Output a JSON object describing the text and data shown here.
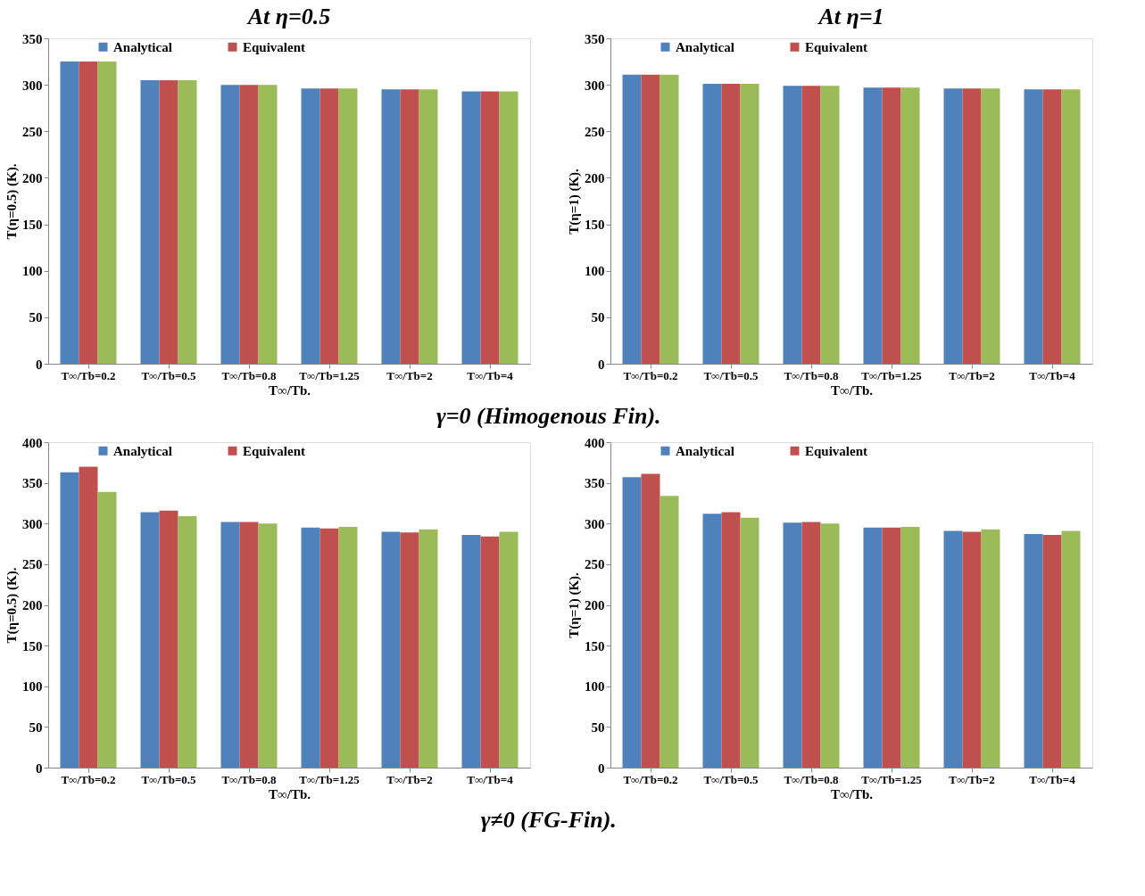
{
  "chart_data": [
    {
      "type": "bar",
      "title": "At η=0.5",
      "annotations": [
        "γ=0 (Himogenous Fin)."
      ],
      "xlabel": "T∞/Tb.",
      "ylabel": "T(η=0.5) (K).",
      "categories": [
        "T∞/Tb=0.2",
        "T∞/Tb=0.5",
        "T∞/Tb=0.8",
        "T∞/Tb=1.25",
        "T∞/Tb=2",
        "T∞/Tb=4"
      ],
      "ylim": [
        0,
        350
      ],
      "yticks": [
        0,
        50,
        100,
        150,
        200,
        250,
        300,
        350
      ],
      "grid": false,
      "legend": "top",
      "series": [
        {
          "name": "Analytical",
          "color": "#4f81bd",
          "values": [
            325,
            305,
            300,
            296,
            295,
            293
          ]
        },
        {
          "name": "Equivalent",
          "color": "#c0504d",
          "values": [
            325,
            305,
            300,
            296,
            295,
            293
          ]
        },
        {
          "color": "#9bbb59",
          "values": [
            325,
            305,
            300,
            296,
            295,
            293
          ]
        }
      ]
    },
    {
      "type": "bar",
      "title": "At η=1",
      "xlabel": "T∞/Tb.",
      "ylabel": "T(η=1) (K).",
      "categories": [
        "T∞/Tb=0.2",
        "T∞/Tb=0.5",
        "T∞/Tb=0.8",
        "T∞/Tb=1.25",
        "T∞/Tb=2",
        "T∞/Tb=4"
      ],
      "ylim": [
        0,
        350
      ],
      "yticks": [
        0,
        50,
        100,
        150,
        200,
        250,
        300,
        350
      ],
      "grid": false,
      "legend": "top",
      "series": [
        {
          "name": "Analytical",
          "color": "#4f81bd",
          "values": [
            311,
            301,
            299,
            297,
            296,
            295
          ]
        },
        {
          "name": "Equivalent",
          "color": "#c0504d",
          "values": [
            311,
            301,
            299,
            297,
            296,
            295
          ]
        },
        {
          "color": "#9bbb59",
          "values": [
            311,
            301,
            299,
            297,
            296,
            295
          ]
        }
      ]
    },
    {
      "type": "bar",
      "annotations": [
        "γ≠0 (FG-Fin)."
      ],
      "xlabel": "T∞/Tb.",
      "ylabel": "T(η=0.5) (K).",
      "categories": [
        "T∞/Tb=0.2",
        "T∞/Tb=0.5",
        "T∞/Tb=0.8",
        "T∞/Tb=1.25",
        "T∞/Tb=2",
        "T∞/Tb=4"
      ],
      "ylim": [
        0,
        400
      ],
      "yticks": [
        0,
        50,
        100,
        150,
        200,
        250,
        300,
        350,
        400
      ],
      "grid": false,
      "legend": "top",
      "series": [
        {
          "name": "Analytical",
          "color": "#4f81bd",
          "values": [
            363,
            314,
            302,
            295,
            290,
            286
          ]
        },
        {
          "name": "Equivalent",
          "color": "#c0504d",
          "values": [
            370,
            316,
            302,
            294,
            289,
            284
          ]
        },
        {
          "color": "#9bbb59",
          "values": [
            339,
            309,
            300,
            296,
            293,
            290
          ]
        }
      ]
    },
    {
      "type": "bar",
      "xlabel": "T∞/Tb.",
      "ylabel": "T(η=1) (K).",
      "categories": [
        "T∞/Tb=0.2",
        "T∞/Tb=0.5",
        "T∞/Tb=0.8",
        "T∞/Tb=1.25",
        "T∞/Tb=2",
        "T∞/Tb=4"
      ],
      "ylim": [
        0,
        400
      ],
      "yticks": [
        0,
        50,
        100,
        150,
        200,
        250,
        300,
        350,
        400
      ],
      "grid": false,
      "legend": "top",
      "series": [
        {
          "name": "Analytical",
          "color": "#4f81bd",
          "values": [
            357,
            312,
            301,
            295,
            291,
            287
          ]
        },
        {
          "name": "Equivalent",
          "color": "#c0504d",
          "values": [
            361,
            314,
            302,
            295,
            290,
            286
          ]
        },
        {
          "color": "#9bbb59",
          "values": [
            334,
            307,
            300,
            296,
            293,
            291
          ]
        }
      ]
    }
  ]
}
